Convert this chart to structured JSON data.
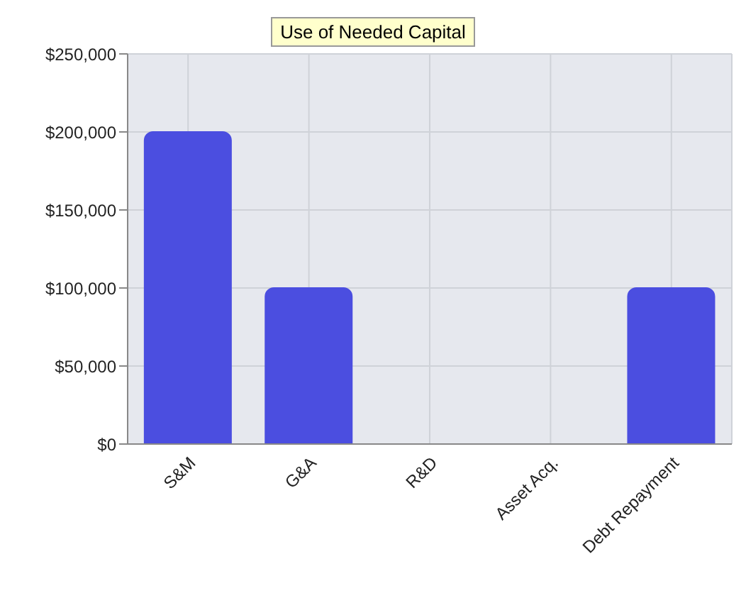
{
  "chart_data": {
    "type": "bar",
    "title": "Use of Needed Capital",
    "categories": [
      "S&M",
      "G&A",
      "R&D",
      "Asset Acq.",
      "Debt Repayment"
    ],
    "values": [
      200000,
      100000,
      0,
      0,
      100000
    ],
    "color": "#4b4ee0",
    "ylim": [
      0,
      250000
    ],
    "yticks": [
      {
        "value": 0,
        "label": "$0"
      },
      {
        "value": 50000,
        "label": "$50,000"
      },
      {
        "value": 100000,
        "label": "$100,000"
      },
      {
        "value": 150000,
        "label": "$150,000"
      },
      {
        "value": 200000,
        "label": "$200,000"
      },
      {
        "value": 250000,
        "label": "$250,000"
      }
    ],
    "grid": true
  }
}
